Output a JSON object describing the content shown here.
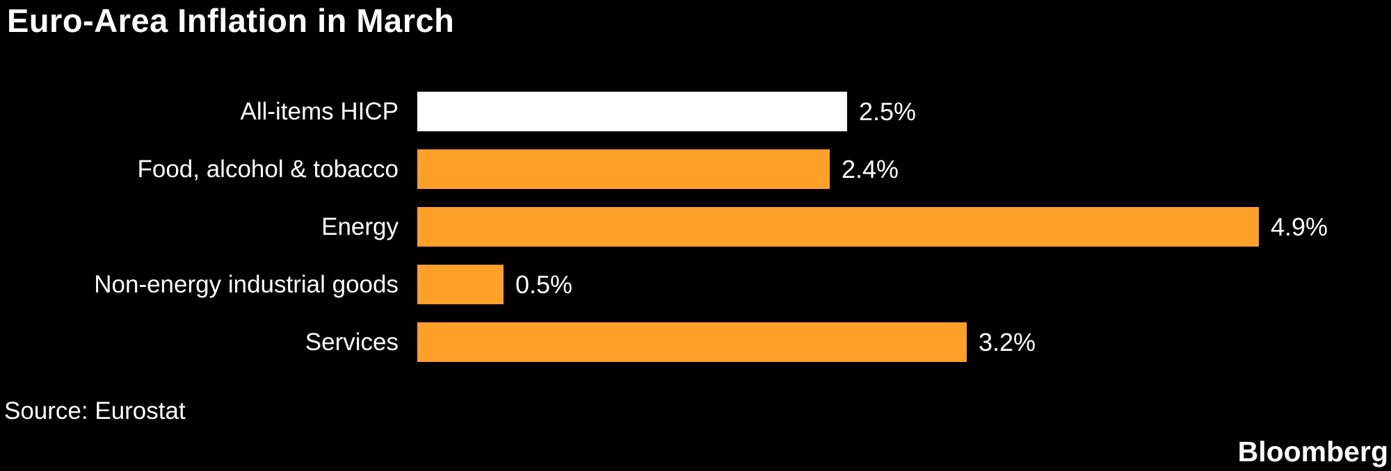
{
  "title": "Euro-Area Inflation in March",
  "source": "Source: Eurostat",
  "brand": "Bloomberg",
  "colors": {
    "background": "#000000",
    "text": "#FFFFFF",
    "bar_orange": "#FFA028",
    "bar_highlight": "#FFFFFF"
  },
  "chart_data": {
    "type": "bar",
    "orientation": "horizontal",
    "title": "Euro-Area Inflation in March",
    "xlabel": "",
    "ylabel": "",
    "unit": "%",
    "xlim": [
      0,
      5.5
    ],
    "grid": false,
    "legend": false,
    "categories": [
      "All-items HICP",
      "Food, alcohol & tobacco",
      "Energy",
      "Non-energy industrial goods",
      "Services"
    ],
    "values": [
      2.5,
      2.4,
      4.9,
      0.5,
      3.2
    ],
    "value_labels": [
      "2.5%",
      "2.4%",
      "4.9%",
      "0.5%",
      "3.2%"
    ],
    "bar_colors": [
      "#FFFFFF",
      "#FFA028",
      "#FFA028",
      "#FFA028",
      "#FFA028"
    ]
  }
}
